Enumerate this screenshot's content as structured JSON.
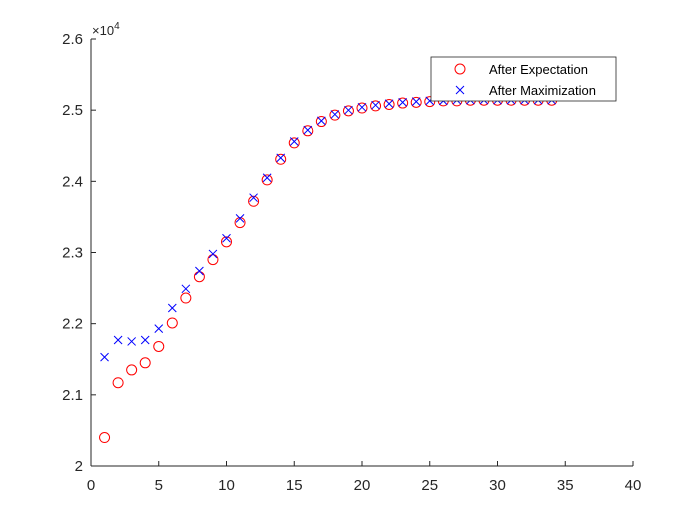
{
  "chart_data": {
    "type": "scatter",
    "title": "",
    "xlabel": "",
    "ylabel": "",
    "xlim": [
      0,
      40
    ],
    "ylim": [
      2.0,
      2.6
    ],
    "y_exponent_label": "×10",
    "y_exponent_power": "4",
    "xticks": [
      "0",
      "5",
      "10",
      "15",
      "20",
      "25",
      "30",
      "35",
      "40"
    ],
    "yticks": [
      "2",
      "2.1",
      "2.2",
      "2.3",
      "2.4",
      "2.5",
      "2.6"
    ],
    "grid": false,
    "legend_position": "top-right",
    "x": [
      1,
      2,
      3,
      4,
      5,
      6,
      7,
      8,
      9,
      10,
      11,
      12,
      13,
      14,
      15,
      16,
      17,
      18,
      19,
      20,
      21,
      22,
      23,
      24,
      25,
      26,
      27,
      28,
      29,
      30,
      31,
      32,
      33,
      34
    ],
    "series": [
      {
        "name": "After Expectation",
        "marker": "circle",
        "color": "#ff0000",
        "values": [
          2.04,
          2.117,
          2.135,
          2.145,
          2.168,
          2.201,
          2.236,
          2.266,
          2.29,
          2.315,
          2.342,
          2.372,
          2.402,
          2.431,
          2.454,
          2.471,
          2.484,
          2.493,
          2.499,
          2.503,
          2.506,
          2.508,
          2.51,
          2.511,
          2.512,
          2.513,
          2.513,
          2.514,
          2.514,
          2.514,
          2.514,
          2.514,
          2.514,
          2.514
        ]
      },
      {
        "name": "After Maximization",
        "marker": "x",
        "color": "#0000ff",
        "values": [
          2.153,
          2.177,
          2.175,
          2.177,
          2.193,
          2.222,
          2.249,
          2.274,
          2.298,
          2.32,
          2.348,
          2.377,
          2.405,
          2.433,
          2.456,
          2.472,
          2.485,
          2.494,
          2.5,
          2.504,
          2.507,
          2.509,
          2.511,
          2.512,
          2.513,
          2.513,
          2.514,
          2.514,
          2.514,
          2.514,
          2.514,
          2.514,
          2.514,
          2.514
        ]
      }
    ]
  }
}
